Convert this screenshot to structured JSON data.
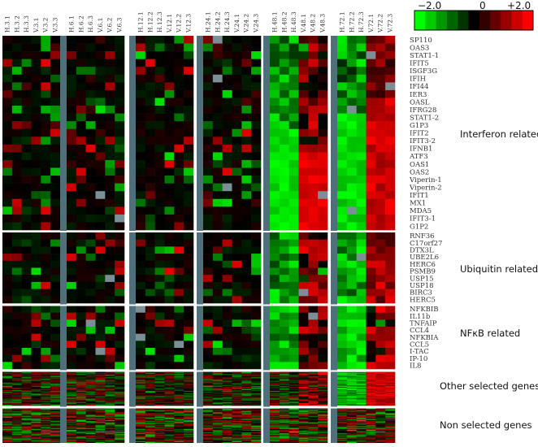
{
  "chart_data": {
    "type": "heatmap",
    "color_scale": {
      "min": -2.0,
      "mid": 0,
      "max": 2.0,
      "tick_labels": [
        "−2.0",
        "0",
        "+2.0"
      ],
      "low_color": "#00ff00",
      "mid_color": "#000000",
      "high_color": "#ff0000"
    },
    "separator_color": "#4f6f7a",
    "column_groups": [
      [
        "H.3.1",
        "H.3.2",
        "H.3.3",
        "V.3.1",
        "V.3.2",
        "V.3.3"
      ],
      [
        "H.6.1",
        "H.6.2",
        "H.6.3",
        "V.6.1",
        "V.6.2",
        "V.6.3"
      ],
      [
        "H.12.1",
        "H.12.2",
        "H.12.3",
        "V.12.1",
        "V.12.2",
        "V.12.3"
      ],
      [
        "H.24.1",
        "H.24.2",
        "H.24.3",
        "V.24.1",
        "V.24.2",
        "V.24.3"
      ],
      [
        "H.48.1",
        "H.48.2",
        "H.48.3",
        "V.48.1",
        "V.48.2",
        "V.48.3"
      ],
      [
        "H.72.1",
        "H.72.2",
        "H.72.3",
        "V.72.1",
        "V.72.2",
        "V.72.3"
      ]
    ],
    "row_groups": [
      {
        "label": "Interferon related",
        "genes": [
          "SP110",
          "OAS3",
          "STAT1-1",
          "IFIT5",
          "ISGF3G",
          "IFIH",
          "IFI44",
          "IER3",
          "OASL",
          "IFRG28",
          "STAT1-2",
          "G1P3",
          "IFIT2",
          "IFIT3-2",
          "IFNB1",
          "ATF3",
          "OAS1",
          "OAS2",
          "Viperin-1",
          "Viperin-2",
          "IFIT1",
          "MX1",
          "MDA5",
          "IFIT3-1",
          "G1P2"
        ]
      },
      {
        "label": "Ubiquitin related",
        "genes": [
          "RNF36",
          "C17orf27",
          "DTX3L",
          "UBE2L6",
          "HERC6",
          "PSMB9",
          "USP15",
          "USP18",
          "BIRC3",
          "HERC5"
        ]
      },
      {
        "label": "NFκB related",
        "genes": [
          "NFKBIB",
          "IL11b",
          "TNFAIP",
          "CCL4",
          "NFKBIA",
          "CCL5",
          "I-TAC",
          "IP-10",
          "IL8"
        ]
      },
      {
        "label": "Other selected genes",
        "genes": []
      },
      {
        "label": "Non selected genes",
        "genes": []
      }
    ]
  }
}
